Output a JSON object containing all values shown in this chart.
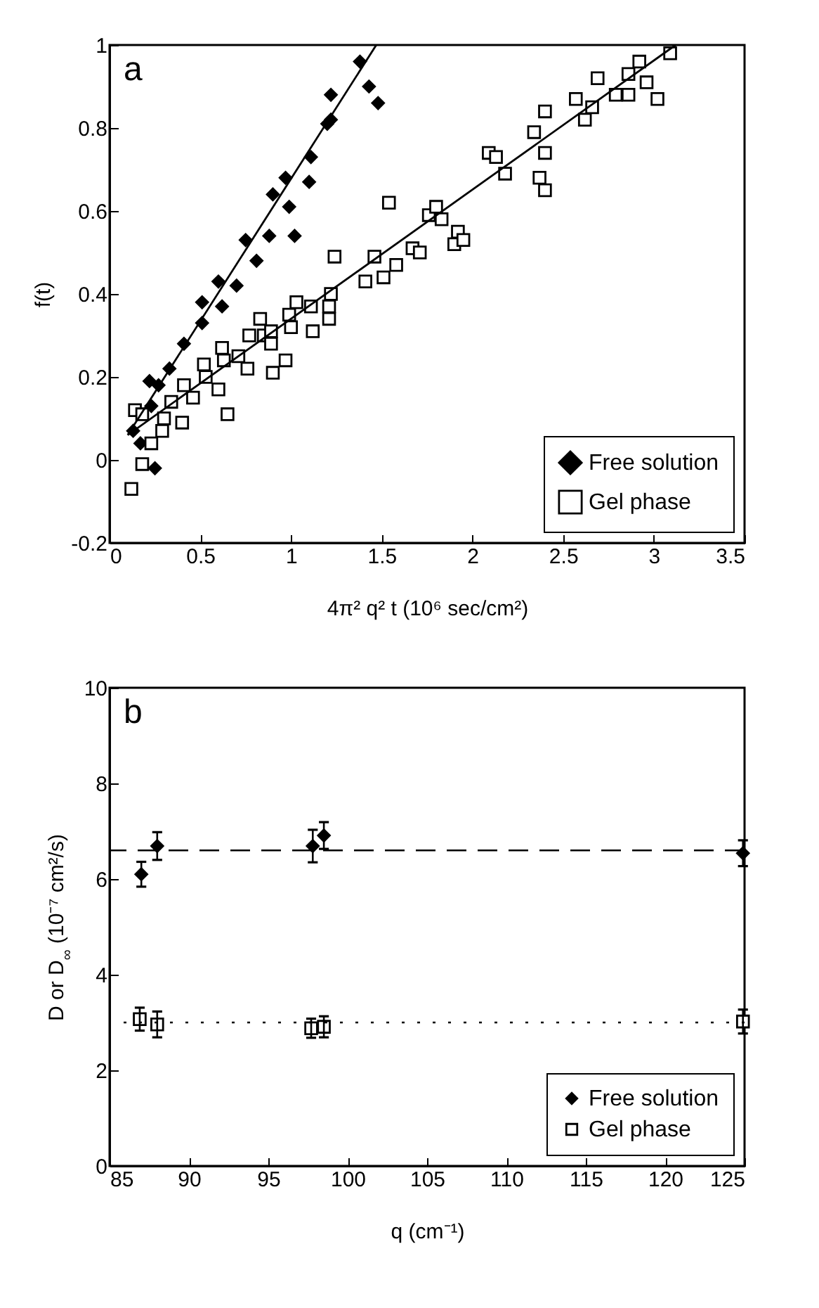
{
  "chart_data": [
    {
      "type": "scatter",
      "annotations": [
        "a"
      ],
      "xlabel": "4π² q² t  (10⁶ sec/cm²)",
      "ylabel": "f(t)",
      "xlim": [
        0,
        3.5
      ],
      "xticks": [
        0,
        0.5,
        1,
        1.5,
        2,
        2.5,
        3,
        3.5
      ],
      "ylim": [
        -0.2,
        1
      ],
      "yticks": [
        -0.2,
        0,
        0.2,
        0.4,
        0.6,
        0.8,
        1
      ],
      "legend": "bottom right",
      "series": [
        {
          "name": "Free solution",
          "color": "#000000",
          "marker": "diamond",
          "x": [
            0.13,
            0.17,
            0.25,
            0.22,
            0.27,
            0.23,
            0.33,
            0.41,
            0.51,
            0.51,
            0.6,
            0.62,
            0.7,
            0.75,
            0.81,
            0.88,
            0.9,
            0.97,
            0.99,
            1.02,
            1.1,
            1.11,
            1.2,
            1.22,
            1.22,
            1.38,
            1.43,
            1.48
          ],
          "values": [
            0.07,
            0.04,
            -0.02,
            0.19,
            0.18,
            0.13,
            0.22,
            0.28,
            0.38,
            0.33,
            0.43,
            0.37,
            0.42,
            0.53,
            0.48,
            0.54,
            0.64,
            0.68,
            0.61,
            0.54,
            0.67,
            0.73,
            0.81,
            0.82,
            0.88,
            0.96,
            0.9,
            0.86
          ]
        },
        {
          "name": "Gel phase",
          "color": "#000000",
          "marker": "square",
          "x": [
            0.14,
            0.18,
            0.18,
            0.12,
            0.23,
            0.29,
            0.3,
            0.34,
            0.4,
            0.41,
            0.46,
            0.52,
            0.53,
            0.6,
            0.65,
            0.62,
            0.63,
            0.71,
            0.76,
            0.77,
            0.83,
            0.85,
            0.89,
            0.89,
            0.9,
            0.97,
            0.99,
            1.0,
            1.03,
            1.11,
            1.12,
            1.21,
            1.22,
            1.21,
            1.24,
            1.41,
            1.46,
            1.51,
            1.58,
            1.54,
            1.67,
            1.71,
            1.76,
            1.8,
            1.83,
            1.92,
            1.9,
            1.95,
            2.09,
            2.13,
            2.18,
            2.34,
            2.4,
            2.4,
            2.37,
            2.4,
            2.57,
            2.62,
            2.66,
            2.69,
            2.79,
            2.86,
            2.86,
            2.92,
            2.96,
            3.02,
            3.09
          ],
          "values": [
            0.12,
            0.11,
            -0.01,
            -0.07,
            0.04,
            0.07,
            0.1,
            0.14,
            0.09,
            0.18,
            0.15,
            0.23,
            0.2,
            0.17,
            0.11,
            0.27,
            0.24,
            0.25,
            0.22,
            0.3,
            0.34,
            0.3,
            0.31,
            0.28,
            0.21,
            0.24,
            0.35,
            0.32,
            0.38,
            0.37,
            0.31,
            0.37,
            0.4,
            0.34,
            0.49,
            0.43,
            0.49,
            0.44,
            0.47,
            0.62,
            0.51,
            0.5,
            0.59,
            0.61,
            0.58,
            0.55,
            0.52,
            0.53,
            0.74,
            0.73,
            0.69,
            0.79,
            0.84,
            0.74,
            0.68,
            0.65,
            0.87,
            0.82,
            0.85,
            0.92,
            0.88,
            0.88,
            0.93,
            0.96,
            0.91,
            0.87,
            0.98
          ]
        },
        {
          "type": "line",
          "color": "#000000",
          "x": [
            0.1,
            1.47
          ],
          "values": [
            0.06,
            1.0
          ]
        },
        {
          "type": "line",
          "color": "#000000",
          "x": [
            0.1,
            3.12
          ],
          "values": [
            0.06,
            1.0
          ]
        }
      ]
    },
    {
      "type": "scatter",
      "annotations": [
        "b"
      ],
      "xlabel": "q (cm⁻¹)",
      "ylabel": "D or D$_{∞}$ (10⁻⁷ cm²/s)",
      "xlim": [
        85,
        125
      ],
      "xticks": [
        85,
        90,
        95,
        100,
        105,
        110,
        115,
        120,
        125
      ],
      "ylim": [
        0,
        10
      ],
      "yticks": [
        0,
        2,
        4,
        6,
        8,
        10
      ],
      "legend": "bottom right",
      "ref_lines": [
        {
          "axis": "y",
          "value": 6.6,
          "line_style": "dashed"
        },
        {
          "axis": "y",
          "value": 3.0,
          "line_style": "dotted"
        }
      ],
      "series": [
        {
          "name": "Free solution",
          "color": "#000000",
          "marker": "diamond",
          "x": [
            87.0,
            88.0,
            97.8,
            98.5,
            124.9
          ],
          "values": [
            6.1,
            6.69,
            6.69,
            6.91,
            6.54
          ],
          "errors": [
            0.26,
            0.29,
            0.34,
            0.28,
            0.27
          ]
        },
        {
          "name": "Gel phase",
          "color": "#000000",
          "marker": "square",
          "x": [
            86.9,
            88.0,
            97.7,
            98.5,
            124.9
          ],
          "values": [
            3.07,
            2.96,
            2.88,
            2.91,
            3.02
          ],
          "errors": [
            0.24,
            0.27,
            0.2,
            0.22,
            0.25
          ]
        }
      ]
    }
  ]
}
